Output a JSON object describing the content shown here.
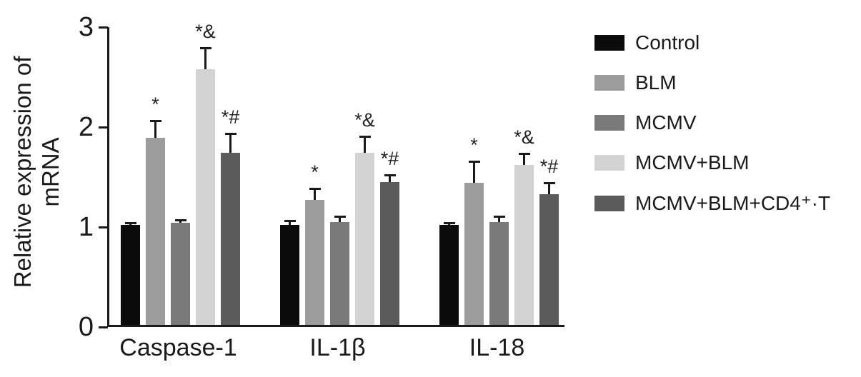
{
  "chart_data": {
    "type": "bar",
    "title": "",
    "xlabel": "",
    "ylabel": "Relative expression of mRNA",
    "ylim": [
      0,
      3
    ],
    "yticks": [
      0,
      1,
      2,
      3
    ],
    "grid": false,
    "legend_position": "right",
    "categories": [
      "Caspase-1",
      "IL-1β",
      "IL-18"
    ],
    "series": [
      {
        "name": "Control",
        "color": "#0b0b0b",
        "values": [
          1.0,
          1.0,
          1.0
        ],
        "errors": [
          0.03,
          0.05,
          0.03
        ],
        "annotations": [
          "",
          "",
          ""
        ]
      },
      {
        "name": "BLM",
        "color": "#9c9c9c",
        "values": [
          1.87,
          1.25,
          1.42
        ],
        "errors": [
          0.18,
          0.12,
          0.22
        ],
        "annotations": [
          "*",
          "*",
          "*"
        ]
      },
      {
        "name": "MCMV",
        "color": "#7a7a7a",
        "values": [
          1.02,
          1.03,
          1.03
        ],
        "errors": [
          0.04,
          0.06,
          0.06
        ],
        "annotations": [
          "",
          "",
          ""
        ]
      },
      {
        "name": "MCMV+BLM",
        "color": "#d3d3d3",
        "values": [
          2.56,
          1.72,
          1.6
        ],
        "errors": [
          0.22,
          0.17,
          0.12
        ],
        "annotations": [
          "*&",
          "*&",
          "*&"
        ]
      },
      {
        "name": "MCMV+BLM+CD4⁺·T",
        "color": "#5b5b5b",
        "values": [
          1.72,
          1.43,
          1.31
        ],
        "errors": [
          0.2,
          0.08,
          0.12
        ],
        "annotations": [
          "*#",
          "*#",
          "*#"
        ]
      }
    ]
  }
}
